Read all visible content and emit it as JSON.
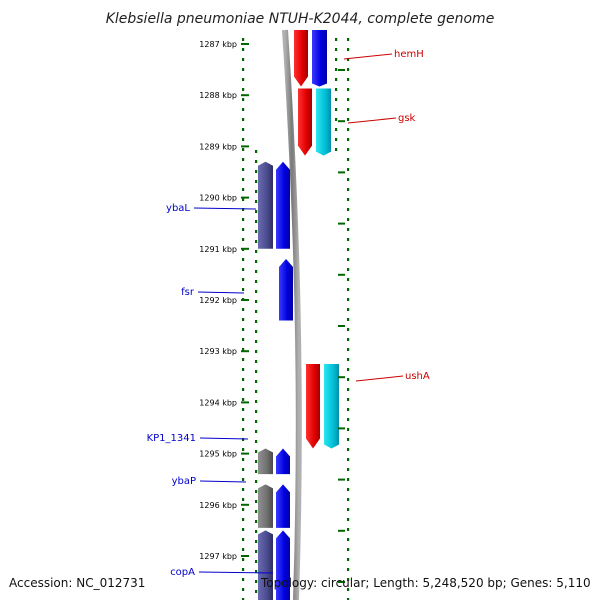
{
  "title": "Klebsiella pneumoniae NTUH-K2044, complete genome",
  "footer": {
    "accession": "Accession: NC_012731",
    "topology": "Topology: circular; Length: 5,248,520 bp; Genes: 5,110"
  },
  "colors": {
    "forward_gene": "#0000ee",
    "reverse_gene": "#ee0000",
    "forward_cds": "#4b4b8f",
    "reverse_cds": "#00c8dc",
    "pseudo_cds": "#707070",
    "backbone": "#808080",
    "tick": "#006600",
    "label_forward": "#0000cc",
    "label_reverse": "#cc0000"
  },
  "ticks": [
    "1287 kbp",
    "1288 kbp",
    "1289 kbp",
    "1290 kbp",
    "1291 kbp",
    "1292 kbp",
    "1293 kbp",
    "1294 kbp",
    "1295 kbp",
    "1296 kbp",
    "1297 kbp"
  ],
  "genes": [
    {
      "name": "hemH",
      "strand": "reverse",
      "start_kbp": 1286.3,
      "end_kbp": 1287.83,
      "cds_color": "blue"
    },
    {
      "name": "gsk",
      "strand": "reverse",
      "start_kbp": 1287.87,
      "end_kbp": 1289.18,
      "cds_color": "cyan"
    },
    {
      "name": "ybaL",
      "strand": "forward",
      "start_kbp": 1289.3,
      "end_kbp": 1291.0,
      "cds_color": "purple"
    },
    {
      "name": "fsr",
      "strand": "forward",
      "start_kbp": 1291.2,
      "end_kbp": 1292.4,
      "cds_color": "none"
    },
    {
      "name": "ushA",
      "strand": "reverse",
      "start_kbp": 1293.25,
      "end_kbp": 1294.9,
      "cds_color": "cyan"
    },
    {
      "name": "KP1_1341",
      "strand": "forward",
      "start_kbp": 1294.9,
      "end_kbp": 1295.4,
      "cds_color": "gray"
    },
    {
      "name": "ybaP",
      "strand": "forward",
      "start_kbp": 1295.6,
      "end_kbp": 1296.45,
      "cds_color": "gray"
    },
    {
      "name": "copA",
      "strand": "forward",
      "start_kbp": 1296.5,
      "end_kbp": 1298.0,
      "cds_color": "purple"
    }
  ]
}
